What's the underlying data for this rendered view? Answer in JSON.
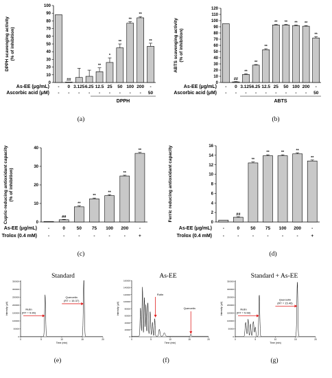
{
  "chart_data": [
    {
      "panel": "(a)",
      "type": "bar",
      "ylabel": [
        "DPPH scavenging activity",
        "(% of inhibition)"
      ],
      "ylim": [
        0,
        100
      ],
      "yticks": [
        "0",
        "10",
        "20",
        "30",
        "40",
        "50",
        "60",
        "70",
        "80",
        "90",
        "100"
      ],
      "categories": [
        "-",
        "0",
        "3.125",
        "6.25",
        "12.5",
        "25",
        "50",
        "100",
        "200",
        "-"
      ],
      "values": [
        88,
        0.5,
        6.5,
        8,
        14,
        26,
        45,
        77,
        84,
        47
      ],
      "errors": [
        0,
        0,
        12,
        8,
        5,
        6,
        5,
        2,
        1.5,
        4
      ],
      "sig": [
        "",
        "##",
        "",
        "",
        "**",
        "*",
        "**",
        "**",
        "**",
        "**"
      ],
      "row1_label": "As-EE (μg/mL)",
      "row2_label": "Ascorbic acid (μM)",
      "row2": [
        "-",
        "-",
        "-",
        "-",
        "-",
        "-",
        "-",
        "-",
        "-",
        "50"
      ],
      "group_label": "DPPH"
    },
    {
      "panel": "(b)",
      "type": "bar",
      "ylabel": [
        "ABTS scavenging activity",
        "(% of inhibition)"
      ],
      "ylim": [
        0,
        120
      ],
      "yticks": [
        "0",
        "10",
        "20",
        "30",
        "40",
        "50",
        "60",
        "70",
        "80",
        "90",
        "100",
        "110",
        "120"
      ],
      "categories": [
        "-",
        "0",
        "3.125",
        "6.25",
        "12.5",
        "25",
        "50",
        "100",
        "200",
        "-"
      ],
      "values": [
        95,
        1,
        13,
        28,
        53,
        93,
        93,
        92,
        91,
        72
      ],
      "errors": [
        0,
        0.5,
        1,
        1,
        1.5,
        1,
        1,
        1,
        1,
        2
      ],
      "sig": [
        "",
        "##",
        "**",
        "**",
        "**",
        "**",
        "**",
        "**",
        "**",
        "**"
      ],
      "row1_label": "As-EE (μg/mL)",
      "row2_label": "Ascorbic acid (μM)",
      "row2": [
        "-",
        "-",
        "-",
        "-",
        "-",
        "-",
        "-",
        "-",
        "-",
        "50"
      ],
      "group_label": "ABTS"
    },
    {
      "panel": "(c)",
      "type": "bar",
      "ylabel": [
        "Cupric-reducing antioxidant capacity",
        "(% of inhibition)"
      ],
      "ylim": [
        0,
        40
      ],
      "yticks": [
        "0",
        "10",
        "20",
        "30",
        "40"
      ],
      "categories": [
        "-",
        "0",
        "50",
        "75",
        "100",
        "200",
        "-"
      ],
      "values": [
        0.3,
        1.2,
        8.2,
        12.5,
        14.2,
        24.8,
        37
      ],
      "errors": [
        0,
        0.2,
        0.5,
        0.4,
        0.5,
        0.4,
        0.5
      ],
      "sig": [
        "",
        "##",
        "**",
        "**",
        "**",
        "**",
        "**"
      ],
      "row1_label": "As-EE (μg/mL)",
      "row2_label": "Trolox (0.4 mM)",
      "row2": [
        "-",
        "-",
        "-",
        "-",
        "-",
        "-",
        "+"
      ]
    },
    {
      "panel": "(d)",
      "type": "bar",
      "ylabel": [
        "Ferric reducing antioxidant capacity"
      ],
      "ylim": [
        0,
        16
      ],
      "yticks": [
        "0",
        "2",
        "4",
        "6",
        "8",
        "10",
        "12",
        "14",
        "16"
      ],
      "categories": [
        "-",
        "0",
        "50",
        "75",
        "100",
        "200",
        "-"
      ],
      "values": [
        0.4,
        1.0,
        12.4,
        13.9,
        13.9,
        14.3,
        12.8
      ],
      "errors": [
        0,
        0.1,
        0.2,
        0.2,
        0.2,
        0.2,
        0.2
      ],
      "sig": [
        "",
        "##",
        "**",
        "**",
        "**",
        "**",
        "**"
      ],
      "row1_label": "As-EE (μg/mL)",
      "row2_label": "Trolox (0.4 mM)",
      "row2": [
        "-",
        "-",
        "-",
        "-",
        "-",
        "-",
        "+"
      ]
    },
    {
      "panel": "(e)",
      "type": "line",
      "title": "Standard",
      "ylabel": "Intensity (μV)",
      "xlabel": "Time (min)",
      "xlim": [
        0,
        20
      ],
      "ylim": [
        0,
        400000
      ],
      "yticks": [
        "0",
        "50000",
        "100000",
        "150000",
        "200000",
        "250000",
        "300000",
        "350000",
        "400000"
      ],
      "xticks": [
        "0",
        "5",
        "10",
        "15",
        "20"
      ],
      "peaks": [
        {
          "x": 5.96,
          "y": 265000
        },
        {
          "x": 15.37,
          "y": 370000
        }
      ],
      "annotations": [
        {
          "name": "Rutin",
          "rt": "(RT = 5.96)"
        },
        {
          "name": "Quercetin",
          "rt": "(RT = 15.37)"
        }
      ]
    },
    {
      "panel": "(f)",
      "type": "line",
      "title": "As-EE",
      "ylabel": "Intensity (μV)",
      "xlabel": "Time (min)",
      "xlim": [
        0,
        20
      ],
      "ylim": [
        0,
        180000
      ],
      "yticks": [
        "0",
        "20000",
        "40000",
        "60000",
        "80000",
        "100000",
        "120000",
        "140000",
        "160000",
        "180000"
      ],
      "xticks": [
        "0",
        "5",
        "10",
        "15",
        "20"
      ],
      "annotations": [
        {
          "name": "Rutin"
        },
        {
          "name": "Quercetin"
        }
      ]
    },
    {
      "panel": "(g)",
      "type": "line",
      "title": "Standard + As-EE",
      "ylabel": "Intensity (μV)",
      "xlabel": "Time (min)",
      "xlim": [
        0,
        20
      ],
      "ylim": [
        0,
        400000
      ],
      "yticks": [
        "0",
        "50000",
        "100000",
        "150000",
        "200000",
        "250000",
        "300000",
        "350000",
        "400000"
      ],
      "xticks": [
        "0",
        "5",
        "10",
        "15",
        "20"
      ],
      "peaks": [
        {
          "x": 5.98,
          "y": 265000
        },
        {
          "x": 15.46,
          "y": 345000
        }
      ],
      "annotations": [
        {
          "name": "Rutin",
          "rt": "(RT = 5.98)"
        },
        {
          "name": "Quercetin",
          "rt": "(RT = 15.46)"
        }
      ]
    }
  ]
}
